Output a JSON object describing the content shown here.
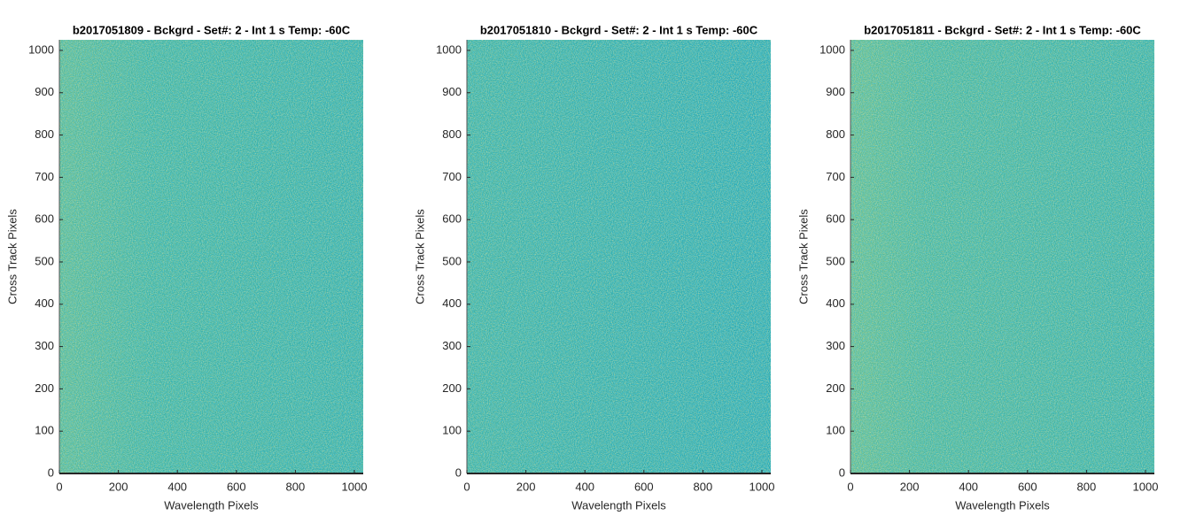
{
  "chart_data": [
    {
      "type": "heatmap",
      "title": "b2017051809 - Bckgrd - Set#: 2 - Int 1 s Temp: -60C",
      "xlabel": "Wavelength Pixels",
      "ylabel": "Cross Track Pixels",
      "xlim": [
        0,
        1030
      ],
      "ylim": [
        0,
        1025
      ],
      "xticks": [
        0,
        200,
        400,
        600,
        800,
        1000
      ],
      "yticks": [
        0,
        100,
        200,
        300,
        400,
        500,
        600,
        700,
        800,
        900,
        1000
      ]
    },
    {
      "type": "heatmap",
      "title": "b2017051810 - Bckgrd - Set#: 2 - Int 1 s Temp: -60C",
      "xlabel": "Wavelength Pixels",
      "ylabel": "Cross Track Pixels",
      "xlim": [
        0,
        1030
      ],
      "ylim": [
        0,
        1025
      ],
      "xticks": [
        0,
        200,
        400,
        600,
        800,
        1000
      ],
      "yticks": [
        0,
        100,
        200,
        300,
        400,
        500,
        600,
        700,
        800,
        900,
        1000
      ]
    },
    {
      "type": "heatmap",
      "title": "b2017051811 - Bckgrd - Set#: 2 - Int 1 s Temp: -60C",
      "xlabel": "Wavelength Pixels",
      "ylabel": "Cross Track Pixels",
      "xlim": [
        0,
        1030
      ],
      "ylim": [
        0,
        1025
      ],
      "xticks": [
        0,
        200,
        400,
        600,
        800,
        1000
      ],
      "yticks": [
        0,
        100,
        200,
        300,
        400,
        500,
        600,
        700,
        800,
        900,
        1000
      ]
    }
  ]
}
